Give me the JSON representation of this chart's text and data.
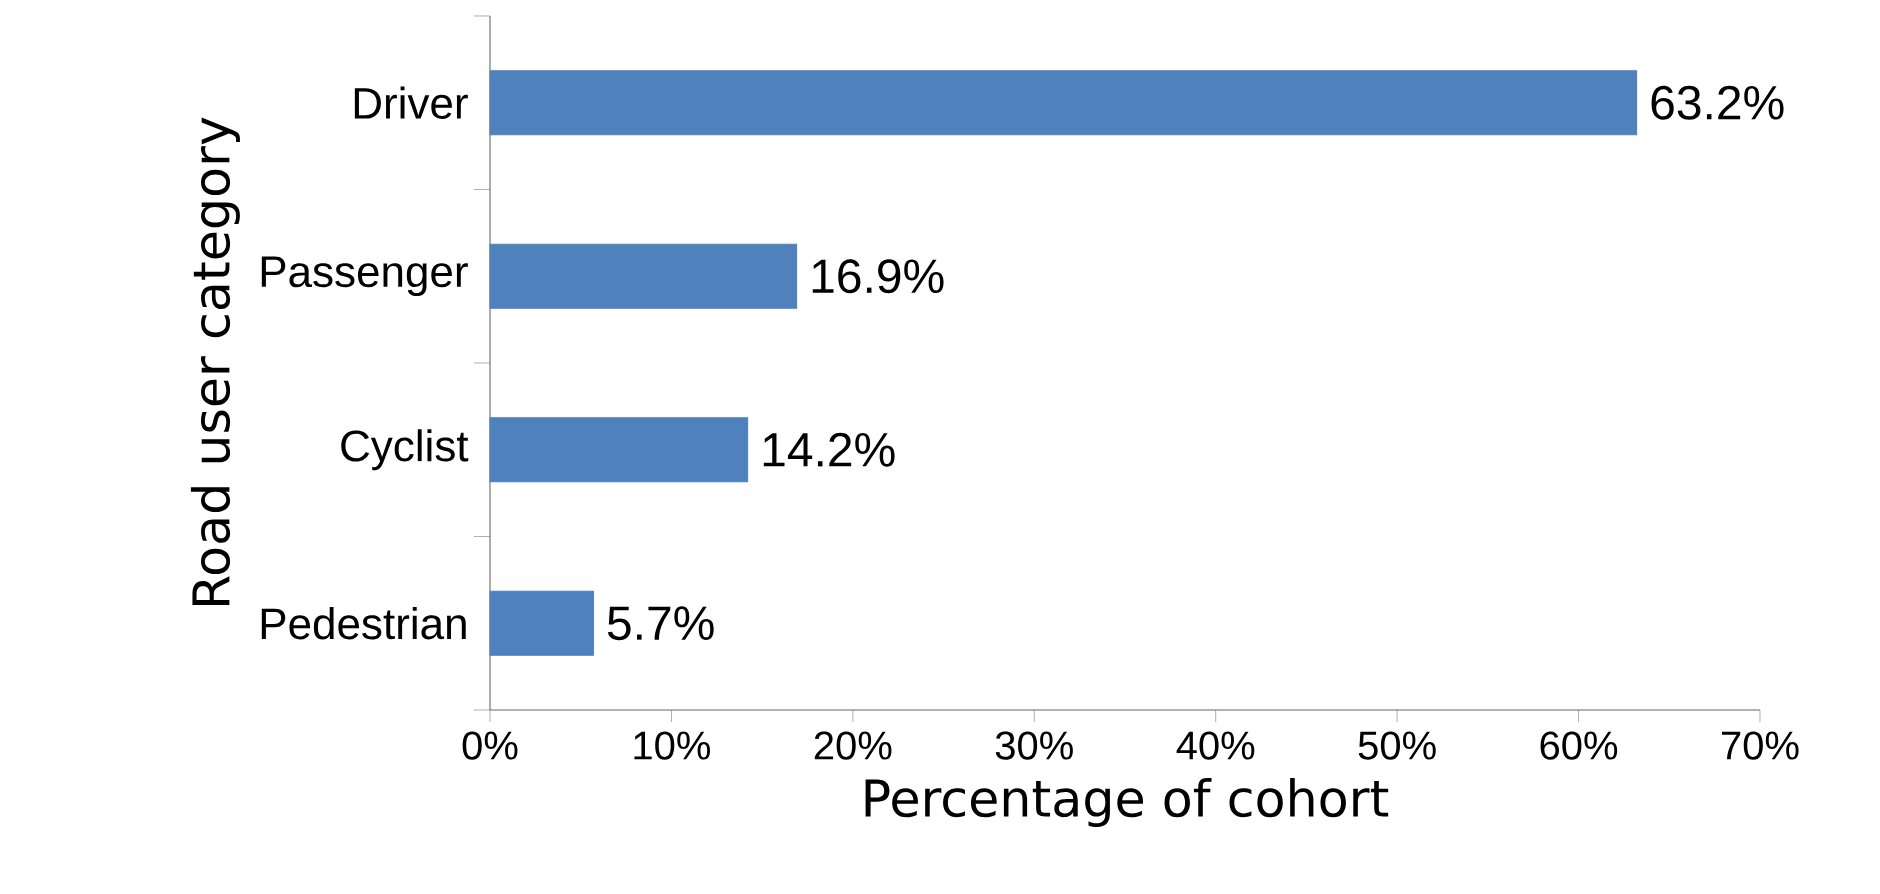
{
  "chart_data": {
    "type": "bar",
    "orientation": "horizontal",
    "xlabel": "Percentage of cohort",
    "ylabel": "Road user category",
    "categories": [
      "Driver",
      "Passenger",
      "Cyclist",
      "Pedestrian"
    ],
    "values": [
      63.2,
      16.9,
      14.2,
      5.7
    ],
    "value_labels": [
      "63.2%",
      "16.9%",
      "14.2%",
      "5.7%"
    ],
    "color": "#4f81bd",
    "xlim": [
      0,
      70
    ],
    "xticks": [
      {
        "value": 0,
        "label": "0%"
      },
      {
        "value": 10,
        "label": "10%"
      },
      {
        "value": 20,
        "label": "20%"
      },
      {
        "value": 30,
        "label": "30%"
      },
      {
        "value": 40,
        "label": "40%"
      },
      {
        "value": 50,
        "label": "50%"
      },
      {
        "value": 60,
        "label": "60%"
      },
      {
        "value": 70,
        "label": "70%"
      }
    ],
    "grid": false
  }
}
